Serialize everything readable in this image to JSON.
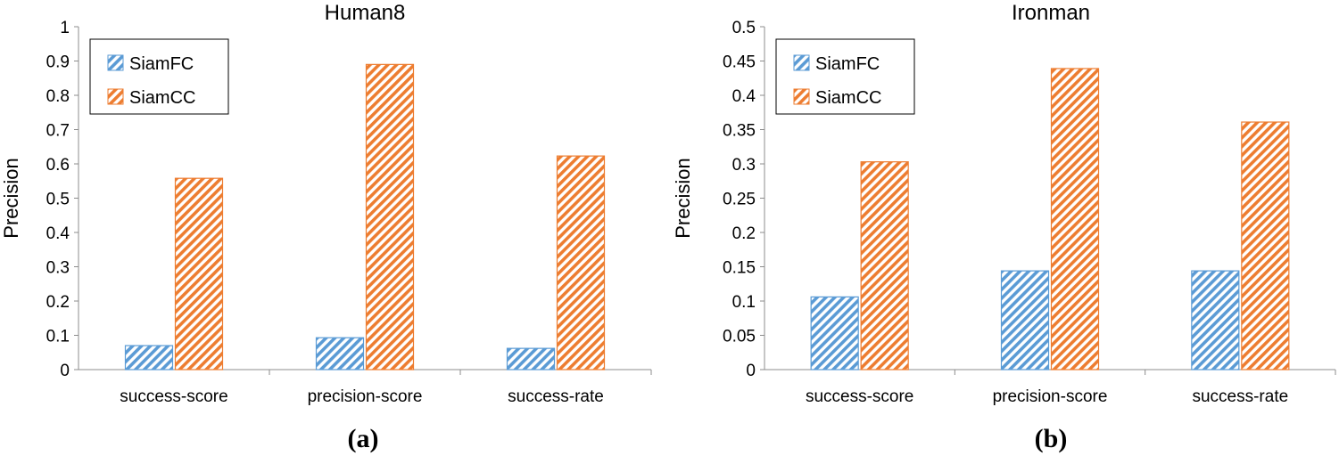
{
  "colors": {
    "SiamFC": "#5b9bd5",
    "SiamCC": "#ed7d31"
  },
  "panels": [
    {
      "label": "(a)"
    },
    {
      "label": "(b)"
    }
  ],
  "chart_data": [
    {
      "type": "bar",
      "title": "Human8",
      "xlabel": "",
      "ylabel": "Precision",
      "ylim": [
        0,
        1
      ],
      "yticks": [
        "0",
        "0.1",
        "0.2",
        "0.3",
        "0.4",
        "0.5",
        "0.6",
        "0.7",
        "0.8",
        "0.9",
        "1"
      ],
      "categories": [
        "success-score",
        "precision-score",
        "success-rate"
      ],
      "series": [
        {
          "name": "SiamFC",
          "values": [
            0.07,
            0.093,
            0.062
          ]
        },
        {
          "name": "SiamCC",
          "values": [
            0.558,
            0.89,
            0.623
          ]
        }
      ],
      "grid": false,
      "legend": "top-left",
      "bar_pattern": "diagonal-hatch"
    },
    {
      "type": "bar",
      "title": "Ironman",
      "xlabel": "",
      "ylabel": "Precision",
      "ylim": [
        0,
        0.5
      ],
      "yticks": [
        "0",
        "0.05",
        "0.1",
        "0.15",
        "0.2",
        "0.25",
        "0.3",
        "0.35",
        "0.4",
        "0.45",
        "0.5"
      ],
      "categories": [
        "success-score",
        "precision-score",
        "success-rate"
      ],
      "series": [
        {
          "name": "SiamFC",
          "values": [
            0.106,
            0.144,
            0.144
          ]
        },
        {
          "name": "SiamCC",
          "values": [
            0.303,
            0.439,
            0.361
          ]
        }
      ],
      "grid": false,
      "legend": "top-left",
      "bar_pattern": "diagonal-hatch"
    }
  ]
}
